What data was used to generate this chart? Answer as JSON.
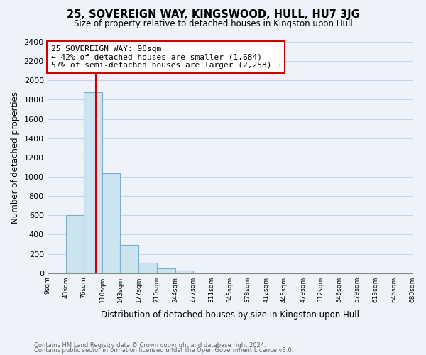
{
  "title1": "25, SOVEREIGN WAY, KINGSWOOD, HULL, HU7 3JG",
  "title2": "Size of property relative to detached houses in Kingston upon Hull",
  "xlabel": "Distribution of detached houses by size in Kingston upon Hull",
  "ylabel": "Number of detached properties",
  "bar_edges": [
    9,
    43,
    76,
    110,
    143,
    177,
    210,
    244,
    277,
    311,
    345,
    378,
    412,
    445,
    479,
    512,
    546,
    579,
    613,
    646,
    680
  ],
  "bar_heights": [
    0,
    600,
    1880,
    1040,
    290,
    110,
    50,
    25,
    0,
    0,
    0,
    0,
    0,
    0,
    0,
    0,
    0,
    0,
    0,
    0
  ],
  "bar_color": "#cce4f0",
  "bar_edge_color": "#7ab0cc",
  "reference_line_x": 98,
  "reference_line_color": "#cc0000",
  "annotation_title": "25 SOVEREIGN WAY: 98sqm",
  "annotation_line1": "← 42% of detached houses are smaller (1,684)",
  "annotation_line2": "57% of semi-detached houses are larger (2,258) →",
  "annotation_box_color": "#ffffff",
  "annotation_box_edge_color": "#cc0000",
  "ylim": [
    0,
    2400
  ],
  "yticks": [
    0,
    200,
    400,
    600,
    800,
    1000,
    1200,
    1400,
    1600,
    1800,
    2000,
    2200,
    2400
  ],
  "tick_labels": [
    "9sqm",
    "43sqm",
    "76sqm",
    "110sqm",
    "143sqm",
    "177sqm",
    "210sqm",
    "244sqm",
    "277sqm",
    "311sqm",
    "345sqm",
    "378sqm",
    "412sqm",
    "445sqm",
    "479sqm",
    "512sqm",
    "546sqm",
    "579sqm",
    "613sqm",
    "646sqm",
    "680sqm"
  ],
  "footer1": "Contains HM Land Registry data © Crown copyright and database right 2024.",
  "footer2": "Contains public sector information licensed under the Open Government Licence v3.0.",
  "bg_color": "#eef2fa",
  "grid_color": "#c8d4e8"
}
